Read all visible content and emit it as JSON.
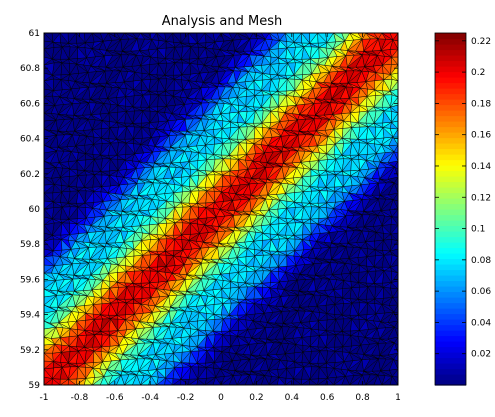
{
  "chart_data": {
    "type": "heatmap",
    "title": "Analysis and Mesh",
    "xlabel": "",
    "ylabel": "",
    "xlim": [
      -1,
      1
    ],
    "ylim": [
      59,
      61
    ],
    "x_ticks": [
      -1,
      -0.8,
      -0.6,
      -0.4,
      -0.2,
      0,
      0.2,
      0.4,
      0.6,
      0.8,
      1
    ],
    "y_ticks": [
      59,
      59.2,
      59.4,
      59.6,
      59.8,
      60,
      60.2,
      60.4,
      60.6,
      60.8,
      61
    ],
    "x_tick_labels": [
      "-1",
      "-0.8",
      "-0.6",
      "-0.4",
      "-0.2",
      "0",
      "0.2",
      "0.4",
      "0.6",
      "0.8",
      "1"
    ],
    "y_tick_labels": [
      "59",
      "59.2",
      "59.4",
      "59.6",
      "59.8",
      "60",
      "60.2",
      "60.4",
      "60.6",
      "60.8",
      "61"
    ],
    "colorbar": {
      "range": [
        0,
        0.225
      ],
      "ticks": [
        0.02,
        0.04,
        0.06,
        0.08,
        0.1,
        0.12,
        0.14,
        0.16,
        0.18,
        0.2,
        0.22
      ],
      "tick_labels": [
        "0.02",
        "0.04",
        "0.06",
        "0.08",
        "0.1",
        "0.12",
        "0.14",
        "0.16",
        "0.18",
        "0.2",
        "0.22"
      ],
      "colormap": "jet"
    },
    "field": {
      "description_of_values": "scalar field on triangular mesh; maximum along diagonal band from lower-left to upper-right",
      "peak_value": 0.22,
      "background_value": 0.0,
      "band_axis_offset": 60
    },
    "mesh": "triangular",
    "mesh_edge_color": "#000000",
    "grid": false
  }
}
